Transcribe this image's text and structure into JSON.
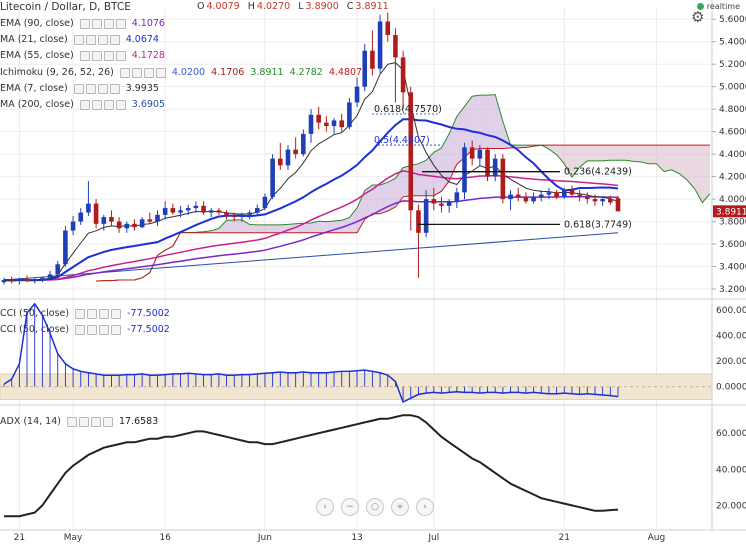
{
  "header": {
    "title": "Litecoin / Dollar, D, BTCE",
    "ohlc": [
      {
        "k": "O",
        "v": "4.0079"
      },
      {
        "k": "H",
        "v": "4.0270"
      },
      {
        "k": "L",
        "v": "3.8900"
      },
      {
        "k": "C",
        "v": "3.8911"
      }
    ],
    "realtime_label": "realtime"
  },
  "legends": [
    {
      "label": "EMA (90, close)",
      "values": [
        "4.1076"
      ],
      "colors": [
        "#7a28c8"
      ]
    },
    {
      "label": "MA (21, close)",
      "values": [
        "4.0674"
      ],
      "colors": [
        "#1d2fd6"
      ]
    },
    {
      "label": "EMA (55, close)",
      "values": [
        "4.1728"
      ],
      "colors": [
        "#c8208e"
      ]
    },
    {
      "label": "Ichimoku (9, 26, 52, 26)",
      "values": [
        "4.0200",
        "4.1706",
        "3.8911",
        "4.2782",
        "4.4807"
      ],
      "colors": [
        "#2a5fd8",
        "#9b1c1c",
        "#2a8a2a",
        "#2a8a2a",
        "#c01c1c"
      ]
    },
    {
      "label": "EMA (7, close)",
      "values": [
        "3.9935"
      ],
      "colors": [
        "#333333"
      ]
    },
    {
      "label": "MA (200, close)",
      "values": [
        "3.6905"
      ],
      "colors": [
        "#2a4fa8"
      ]
    },
    {
      "label": "CCI (50, close)",
      "values": [
        "-77.5002"
      ],
      "colors": [
        "#1d2fd6"
      ]
    },
    {
      "label": "CCI (50, close)",
      "values": [
        "-77.5002"
      ],
      "colors": [
        "#1d2fd6"
      ]
    },
    {
      "label": "ADX (14, 14)",
      "values": [
        "17.6583"
      ],
      "colors": [
        "#222222"
      ]
    }
  ],
  "last_price_badge": "3.8911",
  "colors": {
    "up": "#1f3fb8",
    "down": "#b01c1c",
    "ema90": "#7a28c8",
    "ma21": "#1d2fd6",
    "ema55": "#c8208e",
    "ema7": "#333333",
    "ma200": "#2a4fa8",
    "cloud_bull": "#c9a9d8",
    "cloud_bear": "#d9b8c8",
    "cci": "#1d2fd6",
    "adx": "#222222"
  },
  "x_axis": [
    "21",
    "May",
    "16",
    "Jun",
    "13",
    "Jul",
    "21",
    "Aug"
  ],
  "icons": [
    "gear-icon",
    "realtime-dot-icon",
    "scroll-left-icon",
    "scroll-right-icon",
    "zoom-out-icon",
    "zoom-reset-icon",
    "zoom-in-icon"
  ],
  "chart_data": [
    {
      "type": "candlestick",
      "title": "Litecoin / Dollar, D, BTCE",
      "y_axis_ticks": [
        3.2,
        3.4,
        3.6,
        3.8,
        4.0,
        4.2,
        4.4,
        4.6,
        4.8,
        5.0,
        5.2,
        5.4,
        5.6
      ],
      "ylim": [
        3.12,
        5.7
      ],
      "x_tick_labels": [
        "21",
        "May",
        "16",
        "Jun",
        "13",
        "Jul",
        "21",
        "Aug"
      ],
      "candles": [
        [
          3.26,
          3.3,
          3.24,
          3.28
        ],
        [
          3.28,
          3.31,
          3.25,
          3.27
        ],
        [
          3.27,
          3.3,
          3.24,
          3.29
        ],
        [
          3.29,
          3.32,
          3.26,
          3.27
        ],
        [
          3.27,
          3.3,
          3.25,
          3.28
        ],
        [
          3.28,
          3.31,
          3.26,
          3.3
        ],
        [
          3.3,
          3.36,
          3.28,
          3.33
        ],
        [
          3.33,
          3.45,
          3.31,
          3.42
        ],
        [
          3.42,
          3.76,
          3.4,
          3.72
        ],
        [
          3.72,
          3.85,
          3.68,
          3.8
        ],
        [
          3.8,
          3.92,
          3.77,
          3.88
        ],
        [
          3.88,
          4.16,
          3.85,
          3.96
        ],
        [
          3.96,
          4.0,
          3.74,
          3.78
        ],
        [
          3.78,
          3.86,
          3.72,
          3.84
        ],
        [
          3.84,
          3.9,
          3.76,
          3.8
        ],
        [
          3.8,
          3.84,
          3.7,
          3.74
        ],
        [
          3.74,
          3.8,
          3.7,
          3.78
        ],
        [
          3.78,
          3.82,
          3.72,
          3.75
        ],
        [
          3.75,
          3.84,
          3.74,
          3.82
        ],
        [
          3.82,
          3.88,
          3.78,
          3.8
        ],
        [
          3.8,
          3.9,
          3.76,
          3.86
        ],
        [
          3.86,
          3.98,
          3.82,
          3.92
        ],
        [
          3.92,
          3.96,
          3.86,
          3.88
        ],
        [
          3.88,
          3.94,
          3.84,
          3.9
        ],
        [
          3.9,
          3.95,
          3.86,
          3.92
        ],
        [
          3.92,
          3.98,
          3.88,
          3.94
        ],
        [
          3.94,
          3.98,
          3.86,
          3.88
        ],
        [
          3.88,
          3.92,
          3.84,
          3.9
        ],
        [
          3.9,
          3.92,
          3.86,
          3.88
        ],
        [
          3.88,
          3.9,
          3.82,
          3.85
        ],
        [
          3.85,
          3.88,
          3.8,
          3.84
        ],
        [
          3.84,
          3.88,
          3.8,
          3.86
        ],
        [
          3.86,
          3.9,
          3.82,
          3.88
        ],
        [
          3.88,
          3.95,
          3.85,
          3.92
        ],
        [
          3.92,
          4.05,
          3.9,
          4.02
        ],
        [
          4.02,
          4.4,
          4.0,
          4.36
        ],
        [
          4.36,
          4.5,
          4.26,
          4.3
        ],
        [
          4.3,
          4.48,
          4.26,
          4.44
        ],
        [
          4.44,
          4.55,
          4.36,
          4.4
        ],
        [
          4.4,
          4.62,
          4.38,
          4.58
        ],
        [
          4.58,
          4.8,
          4.5,
          4.75
        ],
        [
          4.75,
          4.82,
          4.62,
          4.68
        ],
        [
          4.68,
          4.74,
          4.6,
          4.65
        ],
        [
          4.65,
          4.72,
          4.58,
          4.7
        ],
        [
          4.7,
          4.76,
          4.6,
          4.64
        ],
        [
          4.64,
          4.9,
          4.62,
          4.86
        ],
        [
          4.86,
          5.08,
          4.82,
          5.0
        ],
        [
          5.0,
          5.38,
          4.96,
          5.32
        ],
        [
          5.32,
          5.5,
          5.1,
          5.16
        ],
        [
          5.16,
          5.64,
          5.12,
          5.58
        ],
        [
          5.58,
          5.66,
          5.4,
          5.46
        ],
        [
          5.46,
          5.52,
          4.86,
          5.26
        ],
        [
          5.26,
          5.32,
          4.8,
          4.95
        ],
        [
          4.95,
          5.0,
          3.72,
          3.9
        ],
        [
          3.9,
          3.95,
          3.3,
          3.7
        ],
        [
          3.7,
          4.08,
          3.66,
          4.0
        ],
        [
          4.0,
          4.1,
          3.9,
          3.96
        ],
        [
          3.96,
          4.02,
          3.88,
          3.94
        ],
        [
          3.94,
          4.0,
          3.88,
          3.98
        ],
        [
          3.98,
          4.1,
          3.92,
          4.06
        ],
        [
          4.06,
          4.5,
          4.0,
          4.46
        ],
        [
          4.46,
          4.52,
          4.3,
          4.36
        ],
        [
          4.36,
          4.48,
          4.3,
          4.44
        ],
        [
          4.44,
          4.46,
          4.16,
          4.2
        ],
        [
          4.2,
          4.4,
          4.16,
          4.36
        ],
        [
          4.36,
          4.4,
          3.96,
          4.0
        ],
        [
          4.0,
          4.08,
          3.9,
          4.04
        ],
        [
          4.04,
          4.1,
          3.98,
          4.02
        ],
        [
          4.02,
          4.06,
          3.96,
          3.98
        ],
        [
          3.98,
          4.06,
          3.96,
          4.02
        ],
        [
          4.02,
          4.08,
          3.98,
          4.04
        ],
        [
          4.04,
          4.1,
          4.0,
          4.06
        ],
        [
          4.06,
          4.08,
          4.0,
          4.02
        ],
        [
          4.02,
          4.1,
          4.0,
          4.08
        ],
        [
          4.08,
          4.12,
          4.02,
          4.04
        ],
        [
          4.04,
          4.08,
          3.98,
          4.02
        ],
        [
          4.02,
          4.06,
          3.96,
          4.0
        ],
        [
          4.0,
          4.04,
          3.94,
          3.98
        ],
        [
          3.98,
          4.02,
          3.94,
          4.0
        ],
        [
          4.0,
          4.03,
          3.95,
          3.97
        ],
        [
          4.0079,
          4.027,
          3.89,
          3.8911
        ]
      ],
      "fibonacci": [
        {
          "label": "0.618(4.7570)",
          "value": 4.757
        },
        {
          "label": "0.5(4.4807)",
          "value": 4.4807
        },
        {
          "label": "0.236(4.2439)",
          "value": 4.2439
        },
        {
          "label": "0.618(3.7749)",
          "value": 3.7749
        }
      ],
      "series": [
        {
          "name": "MA (200, close)",
          "values": [
            3.28,
            3.7
          ]
        },
        {
          "name": "Ichimoku (9, 26, 52, 26)",
          "values": [
            4.02,
            4.1706,
            3.8911,
            4.2782,
            4.4807
          ]
        }
      ]
    },
    {
      "type": "line",
      "title": "CCI (50, close)",
      "y_axis_ticks": [
        600,
        400,
        200,
        0
      ],
      "ylim": [
        -120,
        680
      ],
      "series": [
        {
          "name": "CCI (50, close)",
          "values": [
            20,
            60,
            180,
            580,
            650,
            560,
            420,
            260,
            180,
            140,
            120,
            110,
            100,
            90,
            90,
            90,
            95,
            95,
            100,
            90,
            90,
            95,
            100,
            100,
            105,
            100,
            95,
            95,
            100,
            90,
            90,
            95,
            95,
            100,
            105,
            110,
            115,
            110,
            110,
            115,
            110,
            110,
            110,
            115,
            120,
            120,
            125,
            130,
            120,
            110,
            90,
            40,
            -120,
            -90,
            -60,
            -50,
            -45,
            -50,
            -45,
            -40,
            -45,
            -45,
            -50,
            -45,
            -45,
            -50,
            -45,
            -45,
            -50,
            -45,
            -50,
            -55,
            -55,
            -50,
            -55,
            -60,
            -55,
            -60,
            -65,
            -70,
            -77.5002
          ]
        }
      ],
      "baseline": 0
    },
    {
      "type": "line",
      "title": "ADX (14, 14)",
      "y_axis_ticks": [
        60,
        40,
        20
      ],
      "ylim": [
        8,
        74
      ],
      "series": [
        {
          "name": "ADX (14, 14)",
          "values": [
            14,
            14,
            14,
            15,
            16,
            20,
            26,
            32,
            38,
            42,
            45,
            48,
            50,
            52,
            53,
            54,
            55,
            55,
            56,
            57,
            57,
            58,
            58,
            59,
            60,
            61,
            61,
            60,
            59,
            58,
            57,
            56,
            55,
            55,
            54,
            54,
            55,
            56,
            57,
            58,
            59,
            60,
            61,
            62,
            63,
            64,
            65,
            66,
            67,
            68,
            68,
            69,
            70,
            70,
            69,
            66,
            62,
            58,
            55,
            52,
            49,
            46,
            44,
            41,
            38,
            35,
            32,
            30,
            28,
            26,
            24,
            23,
            22,
            21,
            20,
            19,
            18,
            17,
            17,
            17.4,
            17.6583
          ]
        }
      ]
    }
  ]
}
